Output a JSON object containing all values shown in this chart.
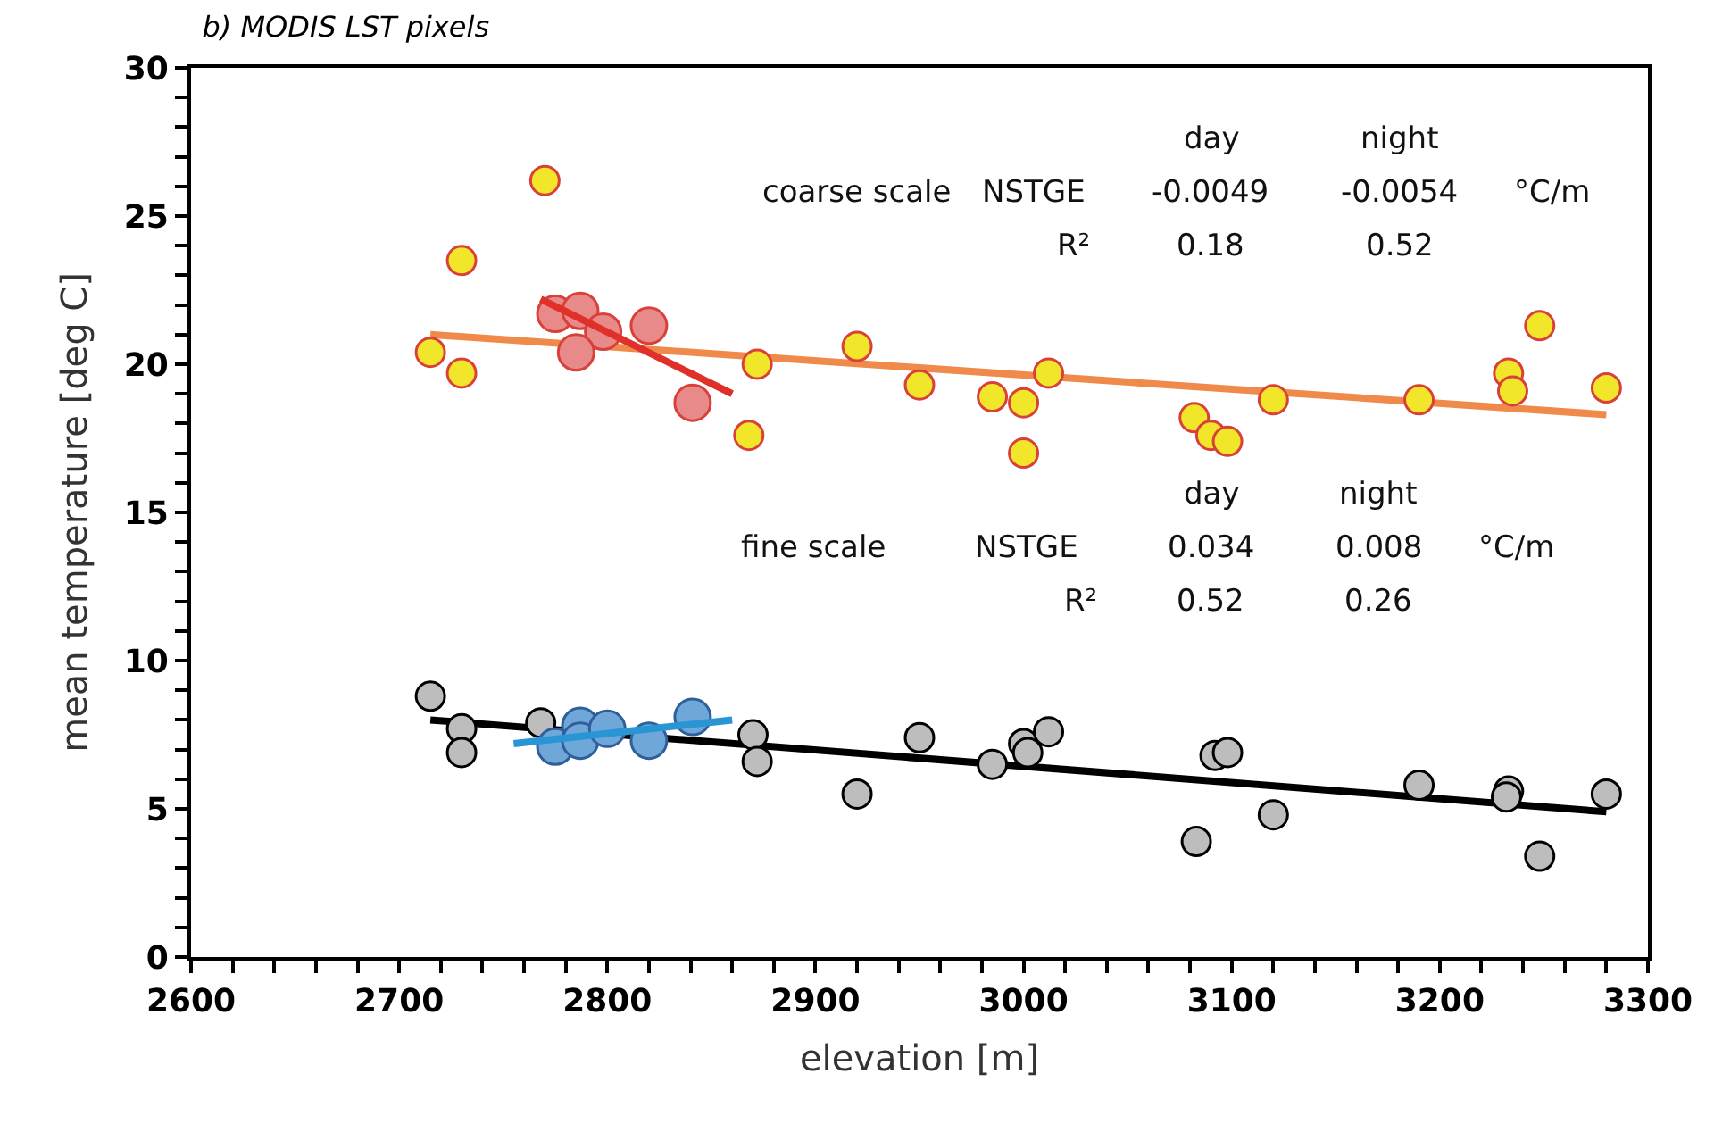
{
  "chart_data": {
    "type": "scatter",
    "title": "b) MODIS LST pixels",
    "xlabel": "elevation [m]",
    "ylabel": "mean temperature [deg C]",
    "marker": "circle",
    "xlim": [
      2600,
      3300
    ],
    "ylim": [
      0,
      30
    ],
    "xticks": [
      2600,
      {
        "value": 2620,
        "label": null
      },
      {
        "value": 2640,
        "label": null
      },
      {
        "value": 2660,
        "label": null
      },
      {
        "value": 2680,
        "label": null
      },
      2700,
      {
        "value": 2720,
        "label": null
      },
      {
        "value": 2740,
        "label": null
      },
      {
        "value": 2760,
        "label": null
      },
      {
        "value": 2780,
        "label": null
      },
      2800,
      {
        "value": 2820,
        "label": null
      },
      {
        "value": 2840,
        "label": null
      },
      {
        "value": 2860,
        "label": null
      },
      {
        "value": 2880,
        "label": null
      },
      2900,
      {
        "value": 2920,
        "label": null
      },
      {
        "value": 2940,
        "label": null
      },
      {
        "value": 2960,
        "label": null
      },
      {
        "value": 2980,
        "label": null
      },
      3000,
      {
        "value": 3020,
        "label": null
      },
      {
        "value": 3040,
        "label": null
      },
      {
        "value": 3060,
        "label": null
      },
      {
        "value": 3080,
        "label": null
      },
      3100,
      {
        "value": 3120,
        "label": null
      },
      {
        "value": 3140,
        "label": null
      },
      {
        "value": 3160,
        "label": null
      },
      {
        "value": 3180,
        "label": null
      },
      3200,
      {
        "value": 3220,
        "label": null
      },
      {
        "value": 3240,
        "label": null
      },
      {
        "value": 3260,
        "label": null
      },
      {
        "value": 3280,
        "label": null
      },
      3300
    ],
    "yticks": [
      0,
      {
        "value": 1,
        "label": null
      },
      {
        "value": 2,
        "label": null
      },
      {
        "value": 3,
        "label": null
      },
      {
        "value": 4,
        "label": null
      },
      5,
      {
        "value": 6,
        "label": null
      },
      {
        "value": 7,
        "label": null
      },
      {
        "value": 8,
        "label": null
      },
      {
        "value": 9,
        "label": null
      },
      10,
      {
        "value": 11,
        "label": null
      },
      {
        "value": 12,
        "label": null
      },
      {
        "value": 13,
        "label": null
      },
      {
        "value": 14,
        "label": null
      },
      15,
      {
        "value": 16,
        "label": null
      },
      {
        "value": 17,
        "label": null
      },
      {
        "value": 18,
        "label": null
      },
      {
        "value": 19,
        "label": null
      },
      20,
      {
        "value": 21,
        "label": null
      },
      {
        "value": 22,
        "label": null
      },
      {
        "value": 23,
        "label": null
      },
      {
        "value": 24,
        "label": null
      },
      25,
      {
        "value": 26,
        "label": null
      },
      {
        "value": 27,
        "label": null
      },
      {
        "value": 28,
        "label": null
      },
      {
        "value": 29,
        "label": null
      },
      30
    ],
    "series": [
      {
        "type": "line",
        "marker": "none",
        "color": "#f08a4b",
        "x": [
          2715,
          3280
        ],
        "values": [
          21.0,
          18.3
        ]
      },
      {
        "type": "line",
        "marker": "none",
        "color": "#000000",
        "x": [
          2715,
          3280
        ],
        "values": [
          8.0,
          4.9
        ]
      },
      {
        "color": "#f2e62a",
        "x": [
          2715,
          2730,
          2730,
          2770,
          2872,
          2868,
          2920,
          2950,
          2985,
          3000,
          3000,
          3012,
          3082,
          3090,
          3098,
          3120,
          3190,
          3233,
          3235,
          3248,
          3280
        ],
        "values": [
          20.4,
          23.5,
          19.7,
          26.2,
          20.0,
          17.6,
          20.6,
          19.3,
          18.9,
          18.7,
          17.0,
          19.7,
          18.2,
          17.6,
          17.4,
          18.8,
          18.8,
          19.7,
          19.1,
          21.3,
          19.2
        ]
      },
      {
        "color": "#e98a8a",
        "x": [
          2775,
          2787,
          2798,
          2785,
          2820,
          2841
        ],
        "values": [
          21.7,
          21.8,
          21.1,
          20.4,
          21.3,
          18.7
        ]
      },
      {
        "color": "#bdbdbd",
        "x": [
          2715,
          2730,
          2730,
          2768,
          2870,
          2872,
          2920,
          2950,
          2985,
          3000,
          3002,
          3012,
          3083,
          3092,
          3098,
          3120,
          3190,
          3233,
          3232,
          3248,
          3280
        ],
        "values": [
          8.8,
          7.7,
          6.9,
          7.9,
          7.5,
          6.6,
          5.5,
          7.4,
          6.5,
          7.2,
          6.9,
          7.6,
          3.9,
          6.8,
          6.9,
          4.8,
          5.8,
          5.6,
          5.4,
          3.4,
          5.5
        ]
      },
      {
        "color": "#6fa8d8",
        "x": [
          2775,
          2787,
          2787,
          2800,
          2820,
          2841
        ],
        "values": [
          7.1,
          7.8,
          7.3,
          7.7,
          7.3,
          8.1
        ]
      },
      {
        "type": "line",
        "marker": "none",
        "color": "#e0302a",
        "x": [
          2768,
          2860
        ],
        "values": [
          22.2,
          19.0
        ]
      },
      {
        "type": "line",
        "marker": "none",
        "color": "#2a95d5",
        "x": [
          2755,
          2860
        ],
        "values": [
          7.2,
          8.0
        ]
      }
    ],
    "annotations": [
      "day",
      "night",
      "coarse scale",
      "NSTGE",
      "-0.0049",
      "-0.0054",
      "°C/m",
      "R²",
      "0.18",
      "0.52",
      "day",
      "night",
      "fine scale",
      "NSTGE",
      "0.034",
      "0.008",
      "°C/m",
      "R²",
      "0.52",
      "0.26"
    ]
  }
}
